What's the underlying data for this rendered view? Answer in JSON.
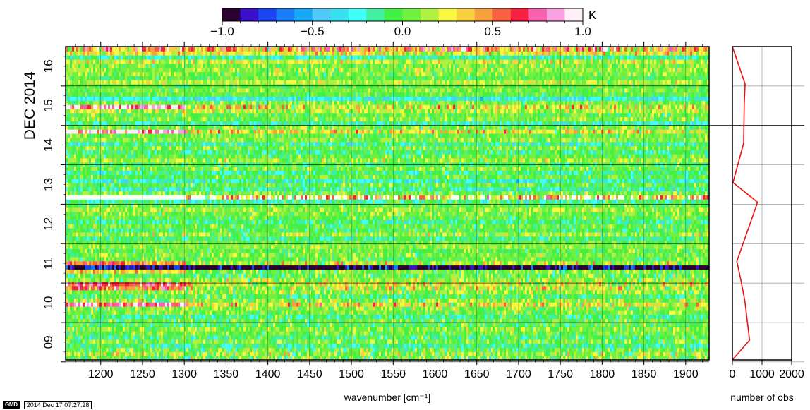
{
  "chart_data": [
    {
      "type": "heatmap",
      "title": "",
      "xlabel": "wavenumber [cm⁻¹]",
      "ylabel": "DEC 2014",
      "xlim": [
        1158,
        1928
      ],
      "x_ticks": [
        1200,
        1250,
        1300,
        1350,
        1400,
        1450,
        1500,
        1550,
        1600,
        1650,
        1700,
        1750,
        1800,
        1850,
        1900
      ],
      "y_days": [
        "09",
        "10",
        "11",
        "12",
        "13",
        "14",
        "15",
        "16"
      ],
      "ylim_days": [
        8.55,
        16.5
      ],
      "colorbar": {
        "unit": "K",
        "range": [
          -1.0,
          1.0
        ],
        "tick_labels": [
          "−1.0",
          "−0.5",
          "0.0",
          "0.5",
          "1.0"
        ],
        "tick_values": [
          -1.0,
          -0.5,
          0.0,
          0.5,
          1.0
        ],
        "colors": [
          "#2a0030",
          "#3a10c8",
          "#1a44f0",
          "#1a7cf8",
          "#18a8f8",
          "#50c8f8",
          "#38e0f0",
          "#40fff8",
          "#40f0a0",
          "#44f044",
          "#70f040",
          "#b0f040",
          "#f8f840",
          "#f8d040",
          "#f8a040",
          "#f86040",
          "#f82040",
          "#f860b0",
          "#f8a0e0",
          "#fff0f8"
        ]
      },
      "rows": [
        {
          "day": 8.6,
          "base": 0.02,
          "spread": 0.22
        },
        {
          "day": 8.7,
          "base": 0.12,
          "spread": 0.22
        },
        {
          "day": 8.81,
          "base": 0.0,
          "spread": 0.2
        },
        {
          "day": 8.91,
          "base": -0.12,
          "spread": 0.18
        },
        {
          "day": 9.02,
          "base": 0.05,
          "spread": 0.18
        },
        {
          "day": 9.12,
          "base": -0.08,
          "spread": 0.18
        },
        {
          "day": 9.23,
          "base": 0.02,
          "spread": 0.15
        },
        {
          "day": 9.33,
          "base": 0.08,
          "spread": 0.15
        },
        {
          "day": 9.44,
          "base": -0.02,
          "spread": 0.15
        },
        {
          "day": 9.54,
          "base": 0.0,
          "spread": 0.15
        },
        {
          "day": 9.65,
          "base": -0.1,
          "spread": 0.18
        },
        {
          "day": 9.75,
          "base": 0.05,
          "spread": 0.15
        },
        {
          "day": 9.85,
          "base": 0.05,
          "spread": 0.18
        },
        {
          "day": 9.96,
          "base": 0.25,
          "spread": 0.28,
          "low_boost": 0.55
        },
        {
          "day": 10.06,
          "base": 0.1,
          "spread": 0.2
        },
        {
          "day": 10.17,
          "base": -0.05,
          "spread": 0.18
        },
        {
          "day": 10.27,
          "base": 0.08,
          "spread": 0.18
        },
        {
          "day": 10.38,
          "base": 0.15,
          "spread": 0.25,
          "low_boost": 0.45
        },
        {
          "day": 10.48,
          "base": 0.2,
          "spread": 0.22,
          "low_boost": 0.5
        },
        {
          "day": 10.58,
          "base": 0.1,
          "spread": 0.2
        },
        {
          "day": 10.69,
          "base": 0.0,
          "spread": 0.18
        },
        {
          "day": 10.8,
          "base": 0.05,
          "spread": 0.18,
          "low_boost": 0.25
        },
        {
          "day": 10.9,
          "base": -0.75,
          "spread": 0.25,
          "low_boost": 1.0
        },
        {
          "day": 11.01,
          "base": 0.15,
          "spread": 0.25,
          "low_boost": 0.35
        },
        {
          "day": 11.11,
          "base": 0.0,
          "spread": 0.15
        },
        {
          "day": 11.22,
          "base": 0.05,
          "spread": 0.15
        },
        {
          "day": 11.32,
          "base": 0.0,
          "spread": 0.15
        },
        {
          "day": 11.42,
          "base": 0.08,
          "spread": 0.12
        },
        {
          "day": 11.53,
          "base": 0.02,
          "spread": 0.12
        },
        {
          "day": 11.63,
          "base": -0.1,
          "spread": 0.15
        },
        {
          "day": 11.74,
          "base": 0.1,
          "spread": 0.18
        },
        {
          "day": 11.84,
          "base": -0.05,
          "spread": 0.15
        },
        {
          "day": 11.95,
          "base": 0.02,
          "spread": 0.15
        },
        {
          "day": 12.05,
          "base": -0.12,
          "spread": 0.15
        },
        {
          "day": 12.16,
          "base": 0.0,
          "spread": 0.15
        },
        {
          "day": 12.26,
          "base": 0.05,
          "spread": 0.15
        },
        {
          "day": 12.36,
          "base": 0.1,
          "spread": 0.15
        },
        {
          "day": 12.47,
          "base": 0.0,
          "spread": 0.15
        },
        {
          "day": 12.57,
          "base": -0.12,
          "spread": 0.18
        },
        {
          "day": 12.68,
          "base": 0.35,
          "spread": 0.35,
          "white_below": 1300
        },
        {
          "day": 12.78,
          "base": 0.05,
          "spread": 0.18
        },
        {
          "day": 12.89,
          "base": -0.15,
          "spread": 0.18
        },
        {
          "day": 12.99,
          "base": 0.0,
          "spread": 0.15
        },
        {
          "day": 13.09,
          "base": -0.2,
          "spread": 0.18
        },
        {
          "day": 13.2,
          "base": 0.0,
          "spread": 0.15
        },
        {
          "day": 13.3,
          "base": -0.12,
          "spread": 0.15
        },
        {
          "day": 13.41,
          "base": 0.05,
          "spread": 0.15
        },
        {
          "day": 13.51,
          "base": -0.05,
          "spread": 0.15
        },
        {
          "day": 13.62,
          "base": 0.12,
          "spread": 0.18
        },
        {
          "day": 13.72,
          "base": 0.0,
          "spread": 0.15
        },
        {
          "day": 13.83,
          "base": -0.1,
          "spread": 0.15
        },
        {
          "day": 13.93,
          "base": 0.05,
          "spread": 0.15
        },
        {
          "day": 14.03,
          "base": -0.15,
          "spread": 0.18
        },
        {
          "day": 14.14,
          "base": 0.08,
          "spread": 0.15
        },
        {
          "day": 14.24,
          "base": 0.02,
          "spread": 0.15
        },
        {
          "day": 14.35,
          "base": 0.25,
          "spread": 0.25,
          "low_boost": 0.6
        },
        {
          "day": 14.45,
          "base": 0.05,
          "spread": 0.18
        },
        {
          "day": 14.56,
          "base": -0.15,
          "spread": 0.12
        },
        {
          "day": 14.66,
          "base": 0.05,
          "spread": 0.15
        },
        {
          "day": 14.77,
          "base": 0.02,
          "spread": 0.15
        },
        {
          "day": 14.87,
          "base": 0.15,
          "spread": 0.18
        },
        {
          "day": 14.97,
          "base": 0.25,
          "spread": 0.28,
          "low_boost": 0.6
        },
        {
          "day": 15.08,
          "base": 0.05,
          "spread": 0.15
        },
        {
          "day": 15.18,
          "base": -0.25,
          "spread": 0.15
        },
        {
          "day": 15.29,
          "base": 0.0,
          "spread": 0.12
        },
        {
          "day": 15.39,
          "base": 0.05,
          "spread": 0.12
        },
        {
          "day": 15.5,
          "base": 0.02,
          "spread": 0.12
        },
        {
          "day": 15.6,
          "base": 0.15,
          "spread": 0.15
        },
        {
          "day": 15.71,
          "base": 0.0,
          "spread": 0.12
        },
        {
          "day": 15.81,
          "base": 0.05,
          "spread": 0.15
        },
        {
          "day": 15.91,
          "base": 0.1,
          "spread": 0.15
        },
        {
          "day": 16.02,
          "base": 0.05,
          "spread": 0.15
        },
        {
          "day": 16.12,
          "base": 0.18,
          "spread": 0.18
        },
        {
          "day": 16.23,
          "base": -0.15,
          "spread": 0.15
        },
        {
          "day": 16.33,
          "base": 0.25,
          "spread": 0.2
        },
        {
          "day": 16.44,
          "base": 0.45,
          "spread": 0.35
        }
      ]
    },
    {
      "type": "line",
      "title": "",
      "xlabel": "number of obs",
      "x_ticks": [
        0,
        1000,
        2000
      ],
      "x_tick_labels": [
        "0",
        "1000",
        "2000"
      ],
      "xlim": [
        0,
        2000
      ],
      "ylim_days": [
        8.55,
        16.5
      ],
      "series": [
        {
          "color": "#ee1111",
          "points": [
            {
              "day": 8.55,
              "obs": 0
            },
            {
              "day": 9.05,
              "obs": 580
            },
            {
              "day": 10.05,
              "obs": 420
            },
            {
              "day": 10.6,
              "obs": 280
            },
            {
              "day": 11.05,
              "obs": 150
            },
            {
              "day": 12.55,
              "obs": 850
            },
            {
              "day": 13.05,
              "obs": 20
            },
            {
              "day": 14.05,
              "obs": 380
            },
            {
              "day": 15.05,
              "obs": 400
            },
            {
              "day": 15.55,
              "obs": 430
            },
            {
              "day": 16.5,
              "obs": 0
            }
          ]
        }
      ]
    }
  ],
  "footer": {
    "logo_text": "GMD",
    "timestamp": "2014 Dec 17 07:27:28"
  }
}
